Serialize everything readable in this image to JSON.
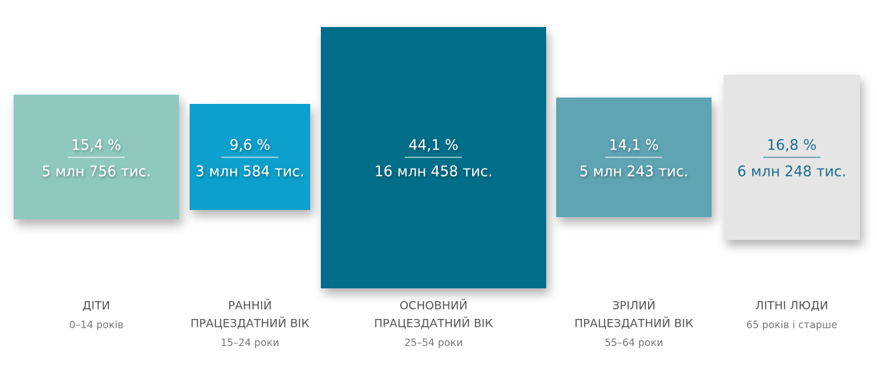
{
  "groups": [
    {
      "percent": "15,4 %",
      "count": "5 млн 756 тис.",
      "label_lines": [
        "ДІТИ"
      ],
      "ages": "0–14 років"
    },
    {
      "percent": "9,6 %",
      "count": "3 млн 584 тис.",
      "label_lines": [
        "РАННІЙ",
        "ПРАЦЕЗДАТНИЙ ВІК"
      ],
      "ages": "15–24 роки"
    },
    {
      "percent": "44,1 %",
      "count": "16 млн 458 тис.",
      "label_lines": [
        "ОСНОВНИЙ",
        "ПРАЦЕЗДАТНИЙ ВІК"
      ],
      "ages": "25–54 роки"
    },
    {
      "percent": "14,1 %",
      "count": "5 млн 243 тис.",
      "label_lines": [
        "ЗРІЛИЙ",
        "ПРАЦЕЗДАТНИЙ ВІК"
      ],
      "ages": "55–64 роки"
    },
    {
      "percent": "16,8 %",
      "count": "6 млн 248 тис.",
      "label_lines": [
        "ЛІТНІ ЛЮДИ"
      ],
      "ages": "65 років і старше"
    }
  ]
}
